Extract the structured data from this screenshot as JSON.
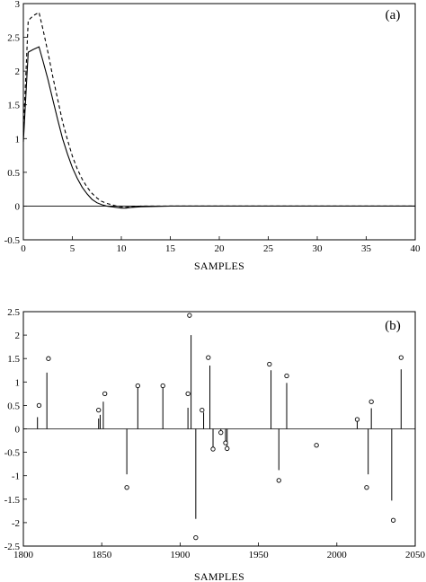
{
  "chart_data": [
    {
      "type": "line",
      "panel_label": "(a)",
      "xlabel": "SAMPLES",
      "ylabel": "",
      "xlim": [
        0,
        40
      ],
      "ylim": [
        -0.5,
        3
      ],
      "xticks": [
        "0",
        "5",
        "10",
        "15",
        "20",
        "25",
        "30",
        "35",
        "40"
      ],
      "yticks": [
        "-0.5",
        "0",
        "0.5",
        "1",
        "1.5",
        "2",
        "2.5",
        "3"
      ],
      "grid": false,
      "series": [
        {
          "style": "solid",
          "x": [
            0,
            0.5,
            1,
            1.6,
            2,
            2.5,
            3,
            3.5,
            4,
            4.5,
            5,
            5.5,
            6,
            6.5,
            7,
            7.5,
            8,
            8.5,
            9,
            9.5,
            10,
            10.5,
            11,
            12,
            15,
            20,
            25,
            30,
            35,
            40
          ],
          "y": [
            0.95,
            2.28,
            2.32,
            2.36,
            2.15,
            1.88,
            1.58,
            1.28,
            1.0,
            0.77,
            0.57,
            0.41,
            0.28,
            0.18,
            0.1,
            0.05,
            0.02,
            0.0,
            -0.01,
            -0.02,
            -0.03,
            -0.03,
            -0.02,
            -0.01,
            0.0,
            0.0,
            0.0,
            0.0,
            0.0,
            0.0
          ]
        },
        {
          "style": "dashed",
          "x": [
            0,
            0.5,
            1,
            1.6,
            2,
            2.5,
            3,
            3.5,
            4,
            4.5,
            5,
            5.5,
            6,
            6.5,
            7,
            7.5,
            8,
            8.5,
            9,
            9.5,
            10,
            10.5,
            11,
            12,
            15,
            20,
            25,
            30,
            35,
            40
          ],
          "y": [
            1.1,
            2.75,
            2.82,
            2.87,
            2.62,
            2.28,
            1.92,
            1.58,
            1.25,
            0.98,
            0.74,
            0.55,
            0.4,
            0.28,
            0.19,
            0.12,
            0.07,
            0.04,
            0.02,
            0.0,
            -0.01,
            -0.02,
            -0.01,
            0.0,
            0.0,
            0.0,
            0.0,
            0.0,
            0.0,
            0.0
          ]
        }
      ]
    },
    {
      "type": "scatter",
      "subtype": "stem",
      "panel_label": "(b)",
      "xlabel": "SAMPLES",
      "ylabel": "",
      "xlim": [
        1800,
        2050
      ],
      "ylim": [
        -2.5,
        2.5
      ],
      "xticks": [
        "1800",
        "1850",
        "1900",
        "1950",
        "2000",
        "2050"
      ],
      "yticks": [
        "-2.5",
        "-2",
        "-1.5",
        "-1",
        "-0.5",
        "0",
        "0.5",
        "1",
        "1.5",
        "2",
        "2.5"
      ],
      "grid": false,
      "stems": [
        {
          "x": 1809,
          "y": 0.25
        },
        {
          "x": 1815,
          "y": 1.2
        },
        {
          "x": 1848,
          "y": 0.22
        },
        {
          "x": 1849,
          "y": 0.3
        },
        {
          "x": 1851,
          "y": 0.58
        },
        {
          "x": 1866,
          "y": -0.97
        },
        {
          "x": 1873,
          "y": 0.92
        },
        {
          "x": 1889,
          "y": 0.88
        },
        {
          "x": 1905,
          "y": 0.45
        },
        {
          "x": 1907,
          "y": 2.0
        },
        {
          "x": 1910,
          "y": -1.92
        },
        {
          "x": 1915,
          "y": 0.35
        },
        {
          "x": 1919,
          "y": 1.35
        },
        {
          "x": 1921,
          "y": -0.42
        },
        {
          "x": 1926,
          "y": -0.08
        },
        {
          "x": 1929,
          "y": -0.3
        },
        {
          "x": 1930,
          "y": -0.4
        },
        {
          "x": 1958,
          "y": 1.25
        },
        {
          "x": 1963,
          "y": -0.88
        },
        {
          "x": 1968,
          "y": 0.98
        },
        {
          "x": 2013,
          "y": 0.2
        },
        {
          "x": 2020,
          "y": -0.97
        },
        {
          "x": 2022,
          "y": 0.44
        },
        {
          "x": 2035,
          "y": -1.53
        },
        {
          "x": 2041,
          "y": 1.27
        }
      ],
      "markers": [
        {
          "x": 1810,
          "y": 0.5
        },
        {
          "x": 1816,
          "y": 1.5
        },
        {
          "x": 1848,
          "y": 0.4
        },
        {
          "x": 1852,
          "y": 0.75
        },
        {
          "x": 1866,
          "y": -1.25
        },
        {
          "x": 1873,
          "y": 0.92
        },
        {
          "x": 1889,
          "y": 0.92
        },
        {
          "x": 1905,
          "y": 0.75
        },
        {
          "x": 1906,
          "y": 2.42
        },
        {
          "x": 1910,
          "y": -2.32
        },
        {
          "x": 1914,
          "y": 0.4
        },
        {
          "x": 1918,
          "y": 1.52
        },
        {
          "x": 1921,
          "y": -0.43
        },
        {
          "x": 1926,
          "y": -0.08
        },
        {
          "x": 1929,
          "y": -0.3
        },
        {
          "x": 1930,
          "y": -0.42
        },
        {
          "x": 1957,
          "y": 1.38
        },
        {
          "x": 1963,
          "y": -1.1
        },
        {
          "x": 1968,
          "y": 1.13
        },
        {
          "x": 1987,
          "y": -0.35
        },
        {
          "x": 2013,
          "y": 0.2
        },
        {
          "x": 2019,
          "y": -1.25
        },
        {
          "x": 2022,
          "y": 0.58
        },
        {
          "x": 2036,
          "y": -1.95
        },
        {
          "x": 2041,
          "y": 1.52
        }
      ]
    }
  ]
}
